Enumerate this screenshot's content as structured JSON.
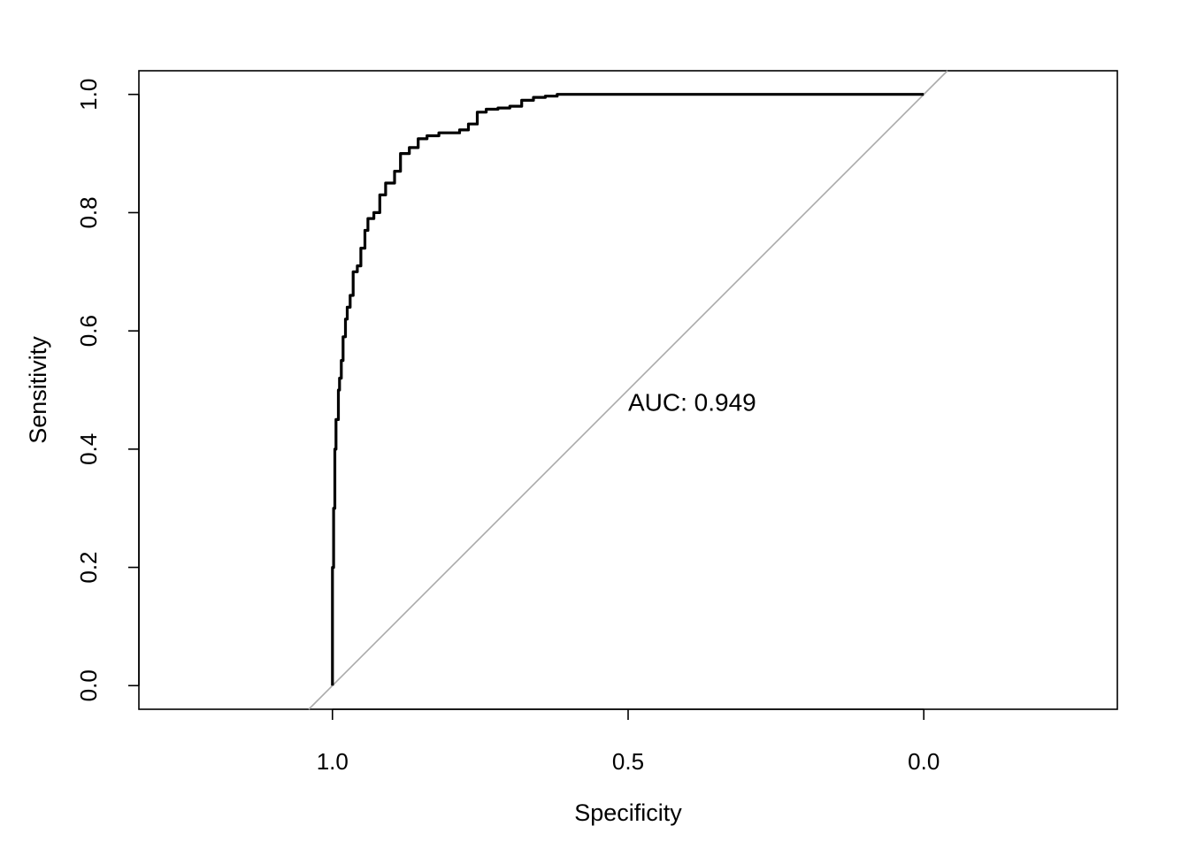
{
  "chart_data": {
    "type": "line",
    "xlabel": "Specificity",
    "ylabel": "Sensitivity",
    "x_reversed": true,
    "xlim": [
      1.3273,
      -0.3273
    ],
    "ylim": [
      -0.04,
      1.04
    ],
    "x_ticks": [
      1.0,
      0.5,
      0.0
    ],
    "x_tick_labels": [
      "1.0",
      "0.5",
      "0.0"
    ],
    "y_ticks": [
      0.0,
      0.2,
      0.4,
      0.6,
      0.8,
      1.0
    ],
    "y_tick_labels": [
      "0.0",
      "0.2",
      "0.4",
      "0.6",
      "0.8",
      "1.0"
    ],
    "grid": false,
    "annotation": {
      "text": "AUC: 0.949",
      "x": 0.5,
      "y": 0.48
    },
    "reference_line": {
      "from": [
        1.04,
        -0.04
      ],
      "to": [
        -0.04,
        1.04
      ],
      "color": "#aaaaaa"
    },
    "series": [
      {
        "color": "#000000",
        "x": [
          1.0,
          1.0,
          0.998,
          0.996,
          0.994,
          0.99,
          0.988,
          0.985,
          0.982,
          0.978,
          0.975,
          0.97,
          0.965,
          0.958,
          0.952,
          0.945,
          0.94,
          0.93,
          0.92,
          0.91,
          0.895,
          0.885,
          0.87,
          0.855,
          0.84,
          0.82,
          0.8,
          0.785,
          0.77,
          0.755,
          0.74,
          0.72,
          0.7,
          0.68,
          0.66,
          0.64,
          0.62,
          0.6,
          0.3,
          0.0
        ],
        "y": [
          0.0,
          0.2,
          0.3,
          0.4,
          0.45,
          0.5,
          0.52,
          0.55,
          0.59,
          0.62,
          0.64,
          0.66,
          0.7,
          0.71,
          0.74,
          0.77,
          0.79,
          0.8,
          0.83,
          0.85,
          0.87,
          0.9,
          0.91,
          0.925,
          0.93,
          0.935,
          0.935,
          0.94,
          0.95,
          0.97,
          0.975,
          0.977,
          0.98,
          0.99,
          0.995,
          0.997,
          1.0,
          1.0,
          1.0,
          1.0
        ]
      }
    ]
  }
}
